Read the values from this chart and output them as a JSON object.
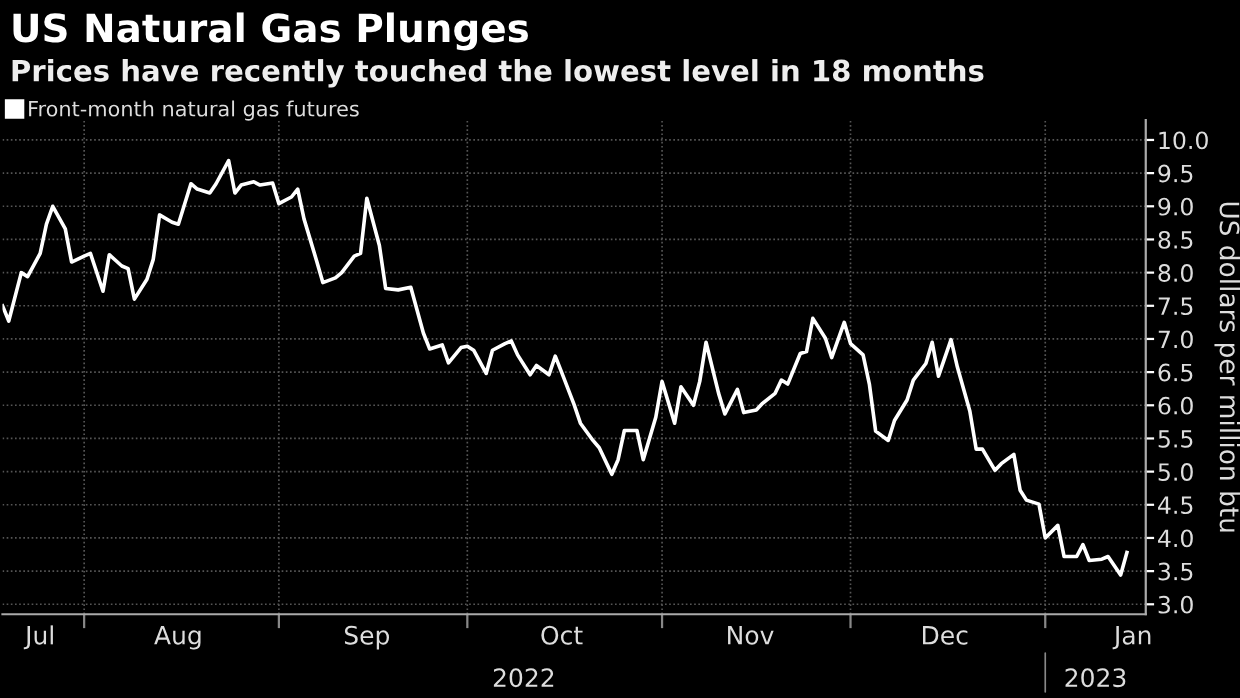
{
  "chart_data": {
    "type": "line",
    "title": "US Natural Gas Plunges",
    "subtitle": "Prices have recently touched the lowest level in 18 months",
    "ylabel": "US dollars per million btu",
    "series": [
      {
        "name": "Front-month natural gas futures",
        "color": "#ffffff",
        "x": [
          "2022-07-19",
          "2022-07-20",
          "2022-07-22",
          "2022-07-23",
          "2022-07-25",
          "2022-07-26",
          "2022-07-27",
          "2022-07-29",
          "2022-07-30",
          "2022-08-01",
          "2022-08-02",
          "2022-08-04",
          "2022-08-05",
          "2022-08-07",
          "2022-08-08",
          "2022-08-09",
          "2022-08-11",
          "2022-08-12",
          "2022-08-13",
          "2022-08-15",
          "2022-08-16",
          "2022-08-18",
          "2022-08-19",
          "2022-08-21",
          "2022-08-22",
          "2022-08-24",
          "2022-08-25",
          "2022-08-26",
          "2022-08-28",
          "2022-08-29",
          "2022-08-31",
          "2022-09-01",
          "2022-09-03",
          "2022-09-04",
          "2022-09-05",
          "2022-09-07",
          "2022-09-08",
          "2022-09-10",
          "2022-09-11",
          "2022-09-13",
          "2022-09-14",
          "2022-09-15",
          "2022-09-17",
          "2022-09-18",
          "2022-09-20",
          "2022-09-22",
          "2022-09-24",
          "2022-09-25",
          "2022-09-27",
          "2022-09-28",
          "2022-09-30",
          "2022-10-01",
          "2022-10-02",
          "2022-10-04",
          "2022-10-05",
          "2022-10-07",
          "2022-10-08",
          "2022-10-09",
          "2022-10-11",
          "2022-10-12",
          "2022-10-14",
          "2022-10-15",
          "2022-10-16",
          "2022-10-18",
          "2022-10-19",
          "2022-10-21",
          "2022-10-22",
          "2022-10-24",
          "2022-10-25",
          "2022-10-26",
          "2022-10-28",
          "2022-10-29",
          "2022-10-31",
          "2022-11-01",
          "2022-11-03",
          "2022-11-04",
          "2022-11-06",
          "2022-11-07",
          "2022-11-08",
          "2022-11-10",
          "2022-11-11",
          "2022-11-13",
          "2022-11-14",
          "2022-11-16",
          "2022-11-17",
          "2022-11-19",
          "2022-11-20",
          "2022-11-21",
          "2022-11-23",
          "2022-11-24",
          "2022-11-25",
          "2022-11-27",
          "2022-11-28",
          "2022-11-30",
          "2022-12-01",
          "2022-12-03",
          "2022-12-04",
          "2022-12-05",
          "2022-12-07",
          "2022-12-08",
          "2022-12-10",
          "2022-12-11",
          "2022-12-13",
          "2022-12-14",
          "2022-12-15",
          "2022-12-17",
          "2022-12-18",
          "2022-12-20",
          "2022-12-21",
          "2022-12-22",
          "2022-12-24",
          "2022-12-25",
          "2022-12-27",
          "2022-12-28",
          "2022-12-29",
          "2022-12-31",
          "2023-01-01",
          "2023-01-03",
          "2023-01-04",
          "2023-01-06",
          "2023-01-07",
          "2023-01-08",
          "2023-01-10",
          "2023-01-11",
          "2023-01-13",
          "2023-01-14"
        ],
        "values": [
          7.5,
          7.27,
          8.0,
          7.94,
          8.29,
          8.73,
          9.0,
          8.66,
          8.16,
          8.25,
          8.29,
          7.72,
          8.27,
          8.1,
          8.06,
          7.6,
          7.9,
          8.2,
          8.87,
          8.76,
          8.73,
          9.34,
          9.26,
          9.2,
          9.34,
          9.69,
          9.2,
          9.32,
          9.37,
          9.32,
          9.35,
          9.04,
          9.14,
          9.26,
          8.81,
          8.18,
          7.85,
          7.92,
          8.0,
          8.25,
          8.29,
          9.12,
          8.41,
          7.76,
          7.74,
          7.78,
          7.09,
          6.85,
          6.91,
          6.64,
          6.87,
          6.89,
          6.83,
          6.48,
          6.83,
          6.93,
          6.97,
          6.76,
          6.46,
          6.6,
          6.46,
          6.74,
          6.5,
          6.01,
          5.73,
          5.47,
          5.36,
          4.96,
          5.18,
          5.62,
          5.62,
          5.18,
          5.82,
          6.36,
          5.73,
          6.28,
          6.0,
          6.36,
          6.95,
          6.18,
          5.87,
          6.24,
          5.89,
          5.93,
          6.03,
          6.18,
          6.38,
          6.32,
          6.78,
          6.81,
          7.31,
          7.01,
          6.72,
          7.25,
          6.93,
          6.76,
          6.32,
          5.61,
          5.47,
          5.77,
          6.08,
          6.38,
          6.63,
          6.95,
          6.44,
          6.99,
          6.58,
          5.91,
          5.34,
          5.34,
          5.02,
          5.12,
          5.26,
          4.72,
          4.57,
          4.51,
          4.0,
          4.19,
          3.72,
          3.72,
          3.9,
          3.66,
          3.68,
          3.72,
          3.44,
          3.78
        ]
      }
    ],
    "xlim": [
      "2022-07-19",
      "2023-01-17"
    ],
    "xticks": [
      {
        "value": "2022-07-25",
        "label": "Jul"
      },
      {
        "value": "2022-08-01",
        "label": null
      },
      {
        "value": "2022-08-16",
        "label": "Aug"
      },
      {
        "value": "2022-09-01",
        "label": null
      },
      {
        "value": "2022-09-15",
        "label": "Sep"
      },
      {
        "value": "2022-10-01",
        "label": null
      },
      {
        "value": "2022-10-16",
        "label": "Oct"
      },
      {
        "value": "2022-11-01",
        "label": null
      },
      {
        "value": "2022-11-15",
        "label": "Nov"
      },
      {
        "value": "2022-12-01",
        "label": null
      },
      {
        "value": "2022-12-16",
        "label": "Dec"
      },
      {
        "value": "2023-01-01",
        "label": null
      },
      {
        "value": "2023-01-15",
        "label": "Jan"
      }
    ],
    "ylim": [
      2.85,
      10.3
    ],
    "yticks": [
      {
        "value": 3,
        "label": "3.0"
      },
      3.5,
      {
        "value": 4,
        "label": "4.0"
      },
      4.5,
      {
        "value": 5,
        "label": "5.0"
      },
      5.5,
      {
        "value": 6,
        "label": "6.0"
      },
      6.5,
      {
        "value": 7,
        "label": "7.0"
      },
      7.5,
      {
        "value": 8,
        "label": "8.0"
      },
      8.5,
      {
        "value": 9,
        "label": "9.0"
      },
      9.5,
      {
        "value": 10,
        "label": "10.0"
      }
    ],
    "annotations": [
      "2022",
      "2023"
    ],
    "grid": true,
    "legend": "top left",
    "marker": "none",
    "line_style": "solid"
  }
}
